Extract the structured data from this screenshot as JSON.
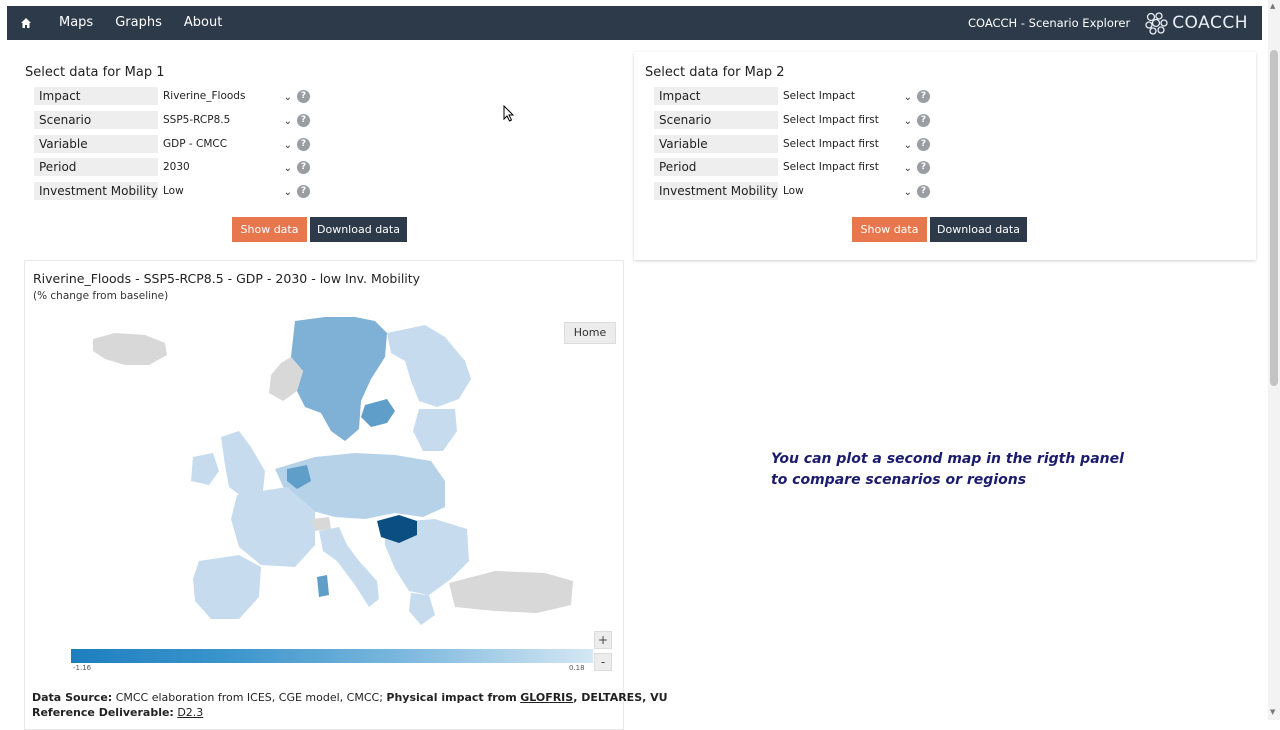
{
  "nav": {
    "home_icon": "home-icon",
    "links": [
      "Maps",
      "Graphs",
      "About"
    ],
    "brand": "COACCH - Scenario Explorer",
    "logo_text": "COACCH"
  },
  "panel1": {
    "title": "Select data for Map 1",
    "fields": [
      {
        "label": "Impact",
        "value": "Riverine_Floods"
      },
      {
        "label": "Scenario",
        "value": "SSP5-RCP8.5"
      },
      {
        "label": "Variable",
        "value": "GDP - CMCC"
      },
      {
        "label": "Period",
        "value": "2030"
      },
      {
        "label": "Investment Mobility",
        "value": "Low"
      }
    ],
    "show_label": "Show data",
    "download_label": "Download data"
  },
  "panel2": {
    "title": "Select data for Map 2",
    "fields": [
      {
        "label": "Impact",
        "value": "Select Impact"
      },
      {
        "label": "Scenario",
        "value": "Select Impact first"
      },
      {
        "label": "Variable",
        "value": "Select Impact first"
      },
      {
        "label": "Period",
        "value": "Select Impact first"
      },
      {
        "label": "Investment Mobility",
        "value": "Low"
      }
    ],
    "show_label": "Show data",
    "download_label": "Download data"
  },
  "help_glyph": "?",
  "map": {
    "title": "Riverine_Floods - SSP5-RCP8.5 - GDP - 2030 - low Inv. Mobility",
    "subtitle": "(% change from baseline)",
    "home_label": "Home",
    "zoom_in": "+",
    "zoom_out": "-",
    "legend_min": "-1.16",
    "legend_max": "0.18",
    "colors": {
      "dark": "#0b4f82",
      "mid": "#5f9ec9",
      "light": "#c6dcee",
      "nodata": "#d8d8d8"
    }
  },
  "source": {
    "label": "Data Source:",
    "text1": "CMCC elaboration from ICES, CGE model, CMCC;",
    "bold2": "Physical impact from",
    "link1": "GLOFRIS",
    "text3": ", DELTARES, VU",
    "ref_label": "Reference Deliverable:",
    "ref_link": "D2.3"
  },
  "note": "You can plot a second map in the rigth panel to compare scenarios or regions",
  "colors": {
    "navbar": "#2d3a4a",
    "accent": "#e8774e",
    "note": "#1c1c6e"
  }
}
